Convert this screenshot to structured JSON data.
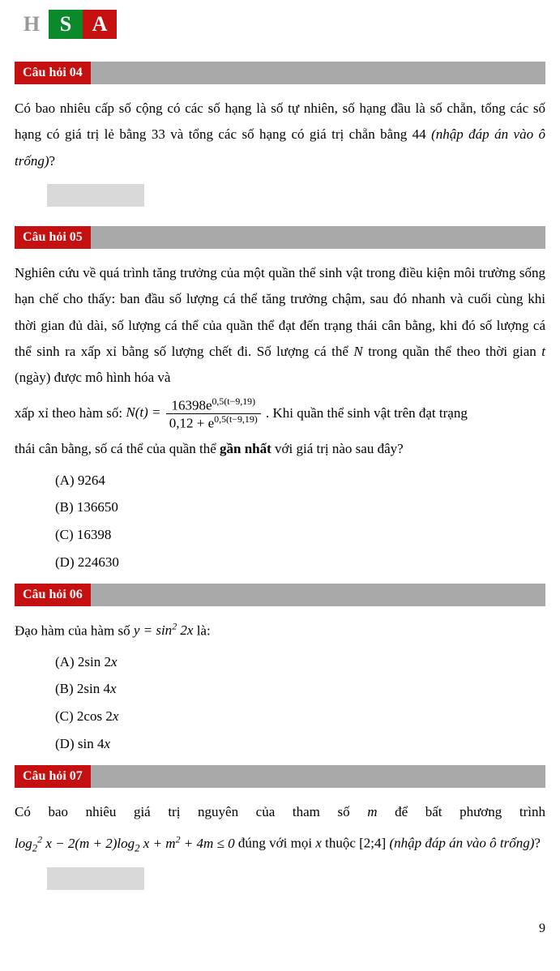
{
  "logo": {
    "h": "H",
    "s": "S",
    "a": "A"
  },
  "q04": {
    "label": "Câu hỏi 04",
    "text_parts": [
      "Có bao nhiêu cấp số cộng có các số hạng là số tự nhiên, số hạng đầu là số chẵn, tổng các số hạng có giá trị lẻ bằng 33 và tổng các số hạng có giá trị chẵn bằng 44 ",
      "(nhập đáp án vào ô trống)",
      "?"
    ]
  },
  "q05": {
    "label": "Câu hỏi 05",
    "p1": "Nghiên cứu về quá trình tăng trưởng của một quần thể sinh vật trong điều kiện môi trường sống hạn chế cho thấy: ban đầu số lượng cá thể tăng trưởng chậm, sau đó nhanh và cuối cùng khi thời gian đủ dài, số lượng cá thể của quần thể đạt đến trạng thái cân bằng, khi đó số lượng cá thể sinh ra xấp xỉ bằng số lượng chết đi. Số lượng cá thể ",
    "p1_N": "N",
    "p1_mid": " trong quần thể theo thời gian ",
    "p1_t": "t",
    "p1_end": " (ngày) được mô hình hóa và",
    "p2_a": "xấp xỉ theo hàm số: ",
    "formula": {
      "lhs": "N(t) =",
      "num": "16398e",
      "num_exp": "0,5(t−9,19)",
      "den_a": "0,12 + e",
      "den_exp": "0,5(t−9,19)"
    },
    "p2_b": ". Khi quần thể sinh vật trên đạt trạng",
    "p3_a": "thái cân bằng, số cá thể của quần thể ",
    "p3_bold": "gần nhất",
    "p3_b": " với giá trị nào sau đây?",
    "opts": {
      "A": "(A) 9264",
      "B": "(B) 136650",
      "C": "(C) 16398",
      "D": "(D) 224630"
    }
  },
  "q06": {
    "label": "Câu hỏi 06",
    "text_a": "Đạo hàm của hàm số ",
    "formula": "y = sin² 2x",
    "text_b": " là:",
    "opts": {
      "A": "(A) 2sin 2x",
      "B": "(B) 2sin 4x",
      "C": "(C) 2cos 2x",
      "D": "(D) sin 4x"
    }
  },
  "q07": {
    "label": "Câu hỏi 07",
    "line1_a": "Có bao nhiêu giá trị nguyên của tham số ",
    "line1_m": "m",
    "line1_b": " để bất phương trình",
    "line2_formula": "log₂² x − 2(m + 2)log₂ x + m² + 4m ≤ 0",
    "line2_a": " đúng với mọi ",
    "line2_x": "x",
    "line2_b": " thuộc ",
    "line2_interval": "[2;4]",
    "line2_c": " ",
    "line2_italic": "(nhập đáp án vào ô trống)",
    "line2_d": "?"
  },
  "page_number": "9",
  "colors": {
    "red": "#c41010",
    "green": "#0a8a2a",
    "grey_bar": "#a9a9a9",
    "grey_box": "#d9d9d9",
    "logo_h": "#999999"
  }
}
